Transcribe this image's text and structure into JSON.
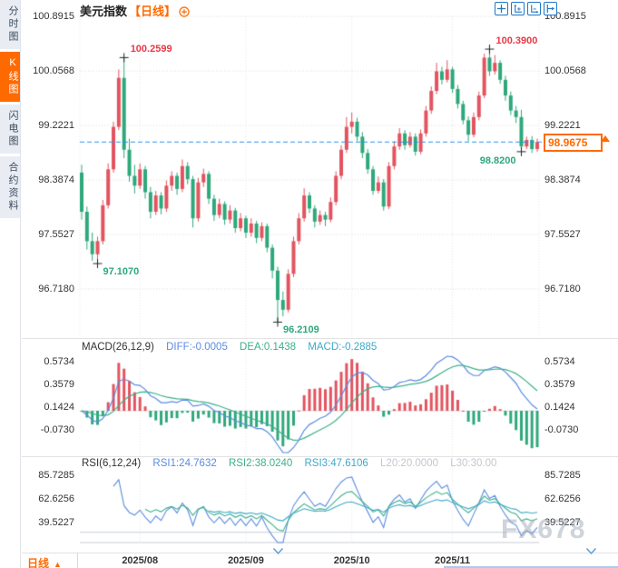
{
  "colors": {
    "candle_up": "#e2545f",
    "candle_down": "#2ea87b",
    "anno_high": "#e73847",
    "anno_low": "#2ea87b",
    "accent_orange": "#ff6a00",
    "dashed_line": "#2b8fe8",
    "diff_blue": "#5b8ce0",
    "dea_green": "#3cb08a",
    "macd_cyan": "#3fa8c8",
    "level_gray": "#c8ccd4",
    "toolbar_blue": "#1f78c8",
    "grid_gray": "#dcdcdc"
  },
  "sidebar": {
    "items": [
      {
        "label": "分时图",
        "active": false
      },
      {
        "label": "K线图",
        "active": true
      },
      {
        "label": "闪电图",
        "active": false
      },
      {
        "label": "合约资料",
        "active": false
      }
    ]
  },
  "header": {
    "title": "美元指数",
    "period_tag": "【日线】",
    "toolbar_icons": [
      "crosshair",
      "scale-y-axis",
      "scale-x-axis",
      "pan-right"
    ]
  },
  "watermark": "FX678",
  "bottom": {
    "tab_label": "日线",
    "tab_arrow": "▲"
  },
  "chart_data": {
    "type": "candlestick",
    "title": "美元指数 日线",
    "price_axis_labels": [
      "100.8915",
      "100.0568",
      "99.2221",
      "98.3874",
      "97.5527",
      "96.7180"
    ],
    "current_price": "98.9675",
    "x_ticks": [
      {
        "label": "2025/08",
        "idx": 11
      },
      {
        "label": "2025/09",
        "idx": 31
      },
      {
        "label": "2025/10",
        "idx": 51
      },
      {
        "label": "2025/11",
        "idx": 70
      }
    ],
    "annotations": [
      {
        "text": "100.2599",
        "idx": 8,
        "price": 100.2599,
        "kind": "high",
        "placement": "right-up"
      },
      {
        "text": "100.3900",
        "idx": 77,
        "price": 100.39,
        "kind": "high",
        "placement": "right-up"
      },
      {
        "text": "97.1070",
        "idx": 3,
        "price": 97.107,
        "kind": "low",
        "placement": "right-down"
      },
      {
        "text": "96.2109",
        "idx": 37,
        "price": 96.2109,
        "kind": "low",
        "placement": "right-down"
      },
      {
        "text": "98.8200",
        "idx": 83,
        "price": 98.82,
        "kind": "low",
        "placement": "left-down"
      }
    ],
    "candles": [
      [
        98.5,
        98.62,
        97.78,
        97.9
      ],
      [
        97.9,
        97.98,
        97.32,
        97.45
      ],
      [
        97.45,
        97.58,
        97.15,
        97.25
      ],
      [
        97.25,
        97.52,
        97.107,
        97.45
      ],
      [
        97.45,
        98.08,
        97.4,
        98.0
      ],
      [
        98.0,
        98.64,
        97.95,
        98.55
      ],
      [
        98.55,
        99.28,
        98.5,
        99.2
      ],
      [
        99.2,
        100.08,
        99.15,
        99.95
      ],
      [
        99.95,
        100.2599,
        98.72,
        98.85
      ],
      [
        98.85,
        99.02,
        98.36,
        98.45
      ],
      [
        98.45,
        98.62,
        98.18,
        98.3
      ],
      [
        98.3,
        98.64,
        98.25,
        98.55
      ],
      [
        98.55,
        98.6,
        98.1,
        98.2
      ],
      [
        98.2,
        98.28,
        97.8,
        97.9
      ],
      [
        97.9,
        98.22,
        97.85,
        98.15
      ],
      [
        98.15,
        98.2,
        97.86,
        97.95
      ],
      [
        97.95,
        98.38,
        97.9,
        98.3
      ],
      [
        98.3,
        98.52,
        98.22,
        98.45
      ],
      [
        98.45,
        98.5,
        98.16,
        98.25
      ],
      [
        98.25,
        98.7,
        98.2,
        98.6
      ],
      [
        98.6,
        98.66,
        98.32,
        98.4
      ],
      [
        98.4,
        98.45,
        97.66,
        97.8
      ],
      [
        97.8,
        98.42,
        97.75,
        98.35
      ],
      [
        98.35,
        98.56,
        98.28,
        98.48
      ],
      [
        98.48,
        98.52,
        98.02,
        98.1
      ],
      [
        98.1,
        98.16,
        97.76,
        97.85
      ],
      [
        97.85,
        98.1,
        97.8,
        98.02
      ],
      [
        98.02,
        98.06,
        97.7,
        97.78
      ],
      [
        97.78,
        98.0,
        97.72,
        97.92
      ],
      [
        97.92,
        97.96,
        97.58,
        97.65
      ],
      [
        97.65,
        97.88,
        97.6,
        97.8
      ],
      [
        97.8,
        97.84,
        97.5,
        97.58
      ],
      [
        97.58,
        97.8,
        97.52,
        97.72
      ],
      [
        97.72,
        97.76,
        97.42,
        97.5
      ],
      [
        97.5,
        97.74,
        97.45,
        97.68
      ],
      [
        97.68,
        97.72,
        97.28,
        97.35
      ],
      [
        97.35,
        97.4,
        96.88,
        97.0
      ],
      [
        97.0,
        97.06,
        96.2109,
        96.55
      ],
      [
        96.55,
        96.68,
        96.3,
        96.4
      ],
      [
        96.4,
        97.02,
        96.36,
        96.95
      ],
      [
        96.95,
        97.52,
        96.9,
        97.45
      ],
      [
        97.45,
        97.88,
        97.4,
        97.8
      ],
      [
        97.8,
        98.26,
        97.75,
        98.15
      ],
      [
        98.15,
        98.2,
        97.88,
        97.95
      ],
      [
        97.95,
        98.0,
        97.66,
        97.75
      ],
      [
        97.75,
        97.92,
        97.7,
        97.85
      ],
      [
        97.85,
        97.9,
        97.68,
        97.78
      ],
      [
        97.78,
        98.12,
        97.74,
        98.05
      ],
      [
        98.05,
        98.52,
        98.0,
        98.45
      ],
      [
        98.45,
        98.92,
        98.4,
        98.85
      ],
      [
        98.85,
        99.35,
        98.8,
        99.2
      ],
      [
        99.2,
        99.42,
        99.1,
        99.28
      ],
      [
        99.28,
        99.34,
        98.98,
        99.05
      ],
      [
        99.05,
        99.12,
        98.72,
        98.8
      ],
      [
        98.8,
        98.86,
        98.48,
        98.55
      ],
      [
        98.55,
        98.6,
        98.16,
        98.22
      ],
      [
        98.22,
        98.44,
        98.18,
        98.35
      ],
      [
        98.35,
        98.4,
        97.92,
        97.98
      ],
      [
        97.98,
        98.66,
        97.94,
        98.6
      ],
      [
        98.6,
        98.98,
        98.55,
        98.9
      ],
      [
        98.9,
        99.18,
        98.85,
        99.1
      ],
      [
        99.1,
        99.15,
        98.85,
        98.92
      ],
      [
        98.92,
        99.12,
        98.88,
        99.05
      ],
      [
        99.05,
        99.1,
        98.76,
        98.82
      ],
      [
        98.82,
        99.16,
        98.78,
        99.1
      ],
      [
        99.1,
        99.52,
        99.05,
        99.45
      ],
      [
        99.45,
        99.82,
        99.4,
        99.75
      ],
      [
        99.75,
        100.18,
        99.7,
        100.05
      ],
      [
        100.05,
        100.12,
        99.85,
        99.92
      ],
      [
        99.92,
        100.22,
        99.88,
        100.08
      ],
      [
        100.08,
        100.12,
        99.72,
        99.78
      ],
      [
        99.78,
        99.84,
        99.48,
        99.55
      ],
      [
        99.55,
        99.6,
        99.24,
        99.3
      ],
      [
        99.3,
        99.36,
        98.98,
        99.08
      ],
      [
        99.08,
        99.42,
        99.04,
        99.35
      ],
      [
        99.35,
        99.74,
        99.3,
        99.68
      ],
      [
        99.68,
        100.32,
        99.64,
        100.26
      ],
      [
        100.26,
        100.39,
        99.98,
        100.05
      ],
      [
        100.05,
        100.3,
        100.0,
        100.18
      ],
      [
        100.18,
        100.22,
        99.86,
        99.92
      ],
      [
        99.92,
        99.98,
        99.6,
        99.68
      ],
      [
        99.68,
        99.74,
        99.38,
        99.45
      ],
      [
        99.45,
        99.52,
        99.26,
        99.35
      ],
      [
        99.35,
        99.46,
        98.82,
        98.9
      ],
      [
        98.9,
        99.05,
        98.86,
        99.0
      ],
      [
        99.0,
        99.06,
        98.8,
        98.86
      ],
      [
        98.86,
        99.02,
        98.82,
        98.9675
      ]
    ],
    "macd": {
      "title": "MACD(26,12,9)",
      "params": [
        26,
        12,
        9
      ],
      "diff_label": "DIFF:-0.0005",
      "dea_label": "DEA:0.1438",
      "macd_label": "MACD:-0.2885",
      "axis_labels": [
        "0.5734",
        "0.3579",
        "0.1424",
        "-0.0730"
      ]
    },
    "rsi": {
      "title": "RSI(6,12,24)",
      "params": [
        6,
        12,
        24
      ],
      "rsi1_label": "RSI1:24.7632",
      "rsi2_label": "RSI2:38.0240",
      "rsi3_label": "RSI3:47.6106",
      "l20_label": "L20:20.0000",
      "l30_label": "L30:30.00",
      "levels": [
        20,
        30
      ],
      "axis_labels": [
        "85.7285",
        "62.6256",
        "39.5227"
      ]
    }
  }
}
